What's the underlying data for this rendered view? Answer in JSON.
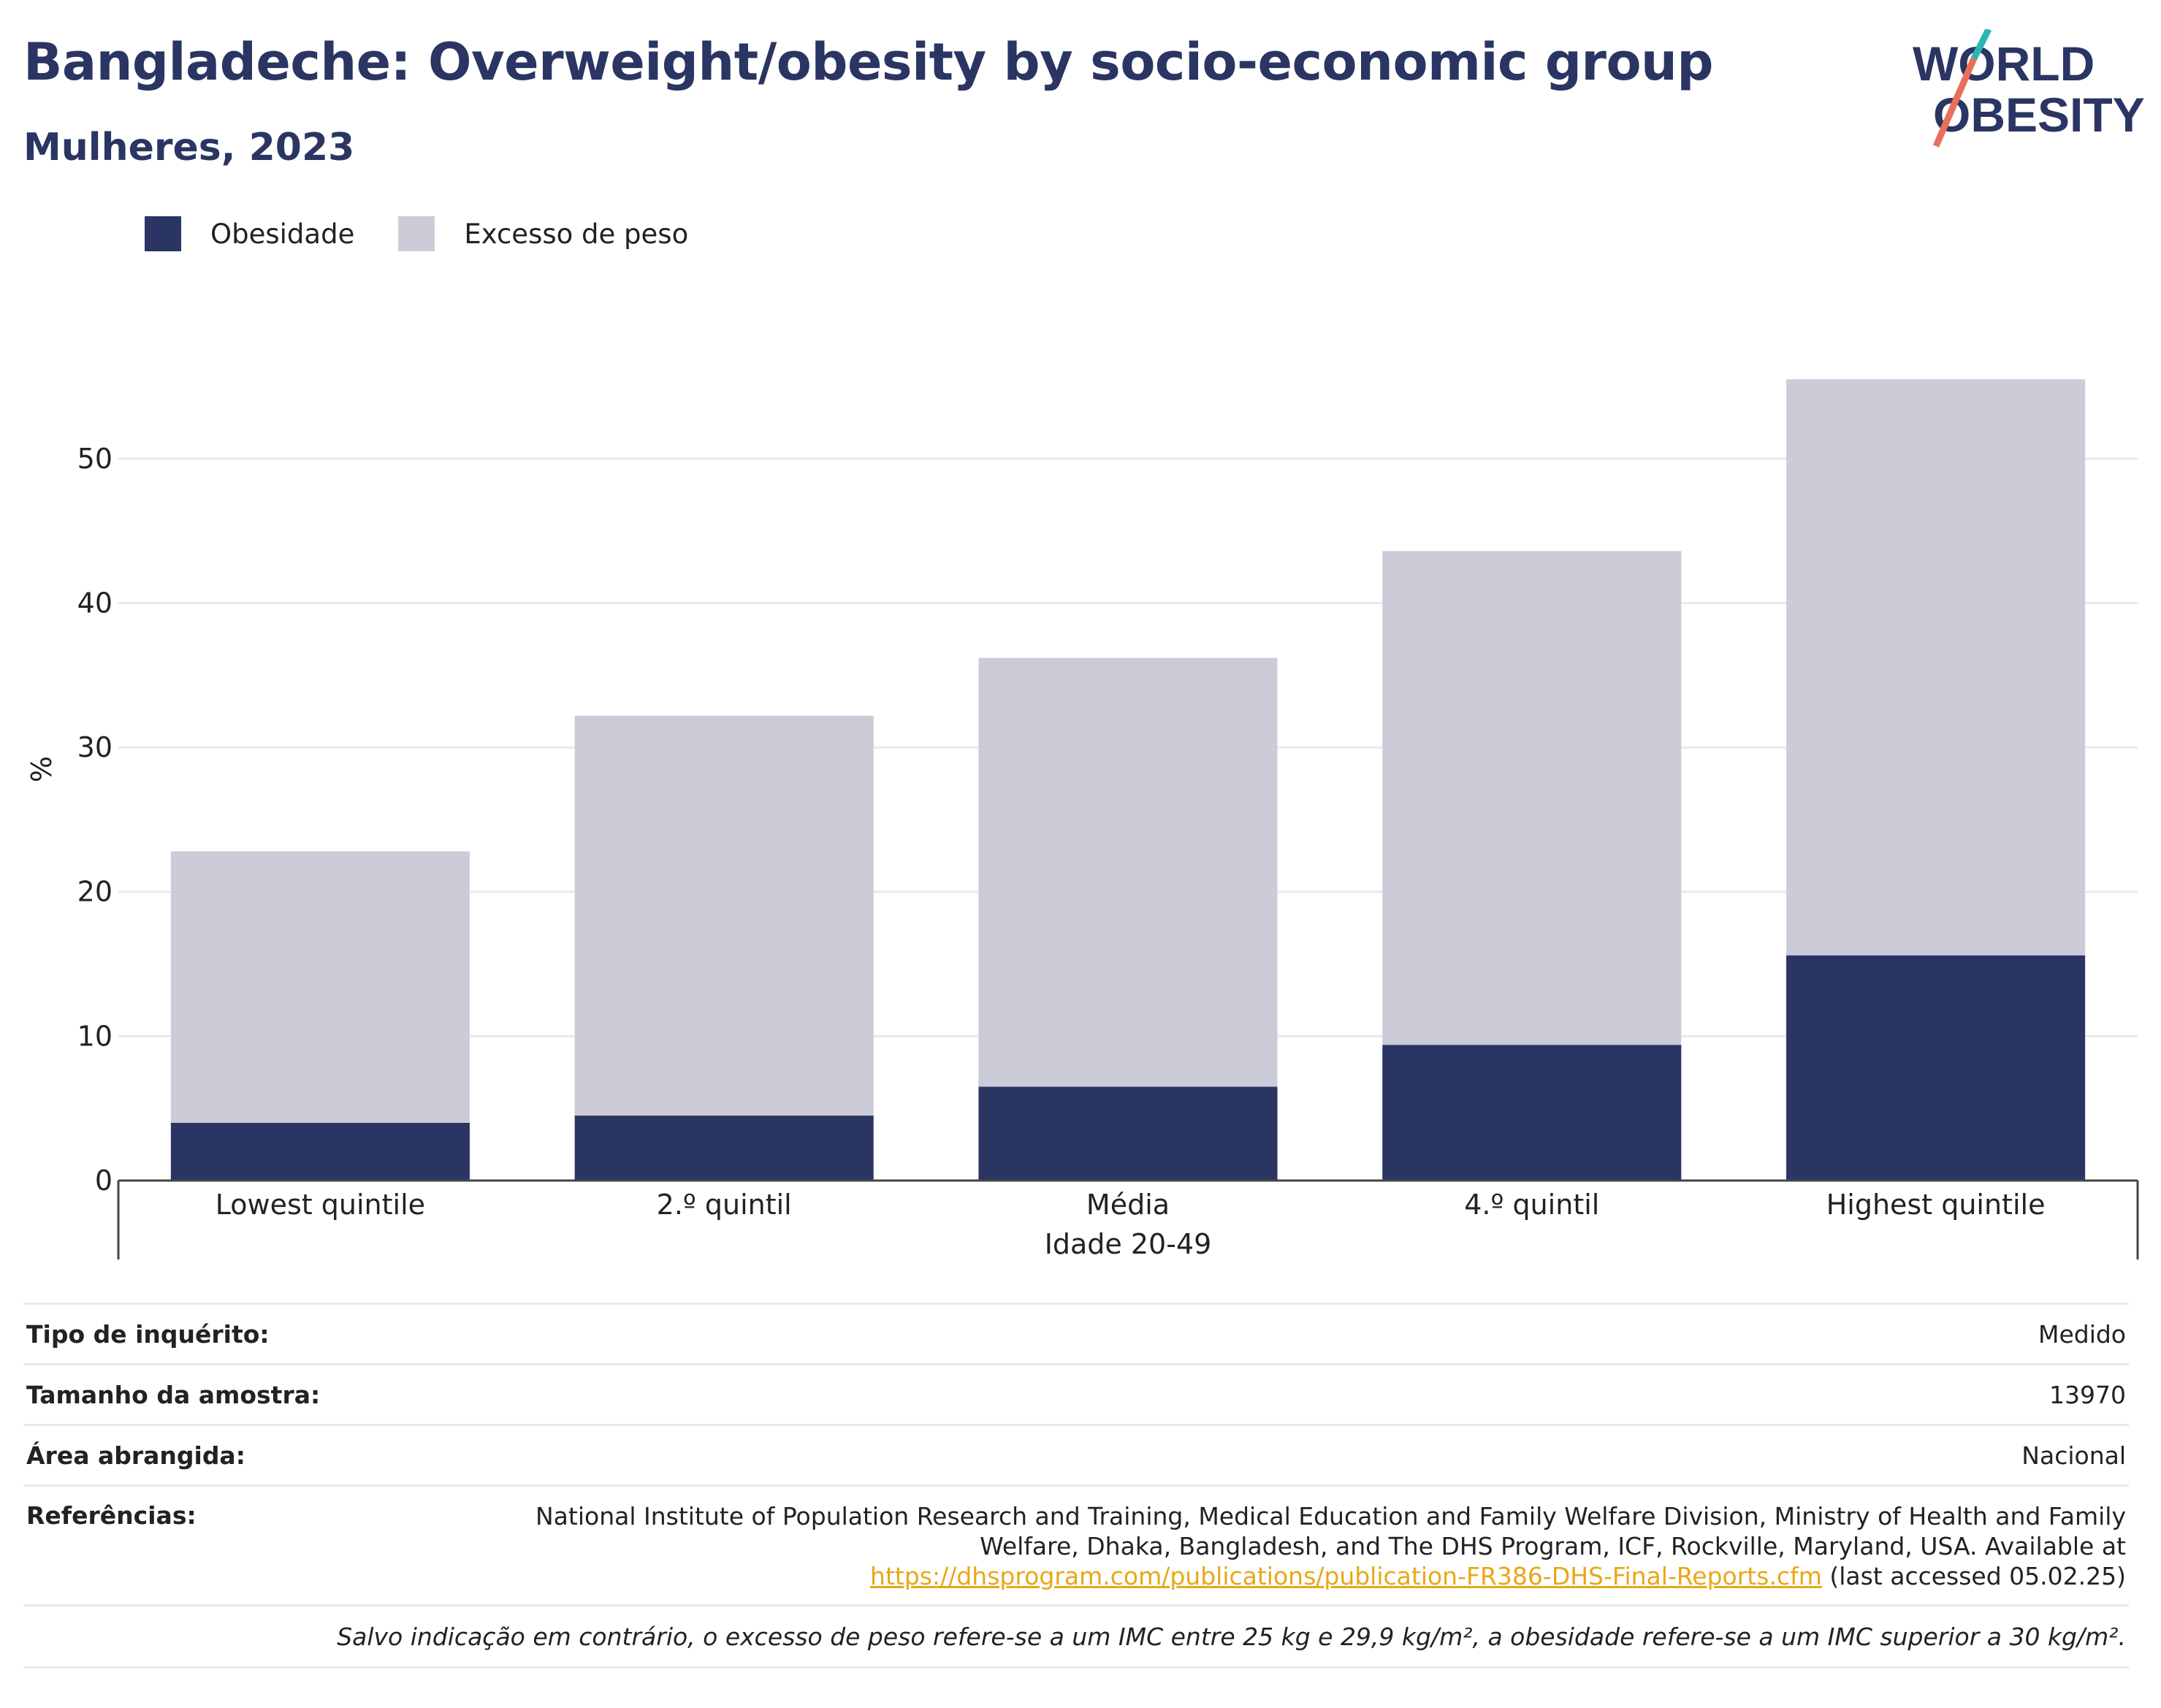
{
  "header": {
    "title": "Bangladeche: Overweight/obesity by socio-economic group",
    "subtitle": "Mulheres, 2023"
  },
  "logo": {
    "line1": "WORLD",
    "line2": "OBESITY"
  },
  "colors": {
    "obesity": "#2b3563",
    "overweight": "#cbccd8",
    "accent_teal": "#2bb5b0",
    "accent_red": "#e8705a",
    "link": "#e6a817"
  },
  "chart_data": {
    "type": "bar",
    "stacked": true,
    "categories": [
      "Lowest quintile",
      "2.º quintil",
      "Média",
      "4.º quintil",
      "Highest quintile"
    ],
    "series": [
      {
        "name": "Obesidade",
        "values": [
          4.0,
          4.5,
          6.5,
          9.4,
          15.6
        ]
      },
      {
        "name": "Excesso de peso",
        "values": [
          18.8,
          27.7,
          29.7,
          34.2,
          39.9
        ]
      }
    ],
    "xlabel": "Idade 20-49",
    "ylabel": "%",
    "ylim": [
      0,
      59
    ],
    "yticks": [
      0,
      10,
      20,
      30,
      40,
      50
    ],
    "grid": true,
    "legend_position": "top-left"
  },
  "info": {
    "survey_type_label": "Tipo de inquérito:",
    "survey_type_value": "Medido",
    "sample_size_label": "Tamanho da amostra:",
    "sample_size_value": "13970",
    "area_label": "Área abrangida:",
    "area_value": "Nacional",
    "references_label": "Referências:",
    "references_text": "National Institute of Population Research and Training, Medical Education and Family Welfare Division, Ministry of Health and Family Welfare, Dhaka, Bangladesh, and The DHS Program, ICF, Rockville, Maryland, USA. Available at",
    "references_link": "https://dhsprogram.com/publications/publication-FR386-DHS-Final-Reports.cfm",
    "references_suffix": " (last accessed 05.02.25)",
    "footnote": "Salvo indicação em contrário, o excesso de peso refere-se a um IMC entre 25 kg e 29,9 kg/m², a obesidade refere-se a um IMC superior a 30 kg/m²."
  }
}
